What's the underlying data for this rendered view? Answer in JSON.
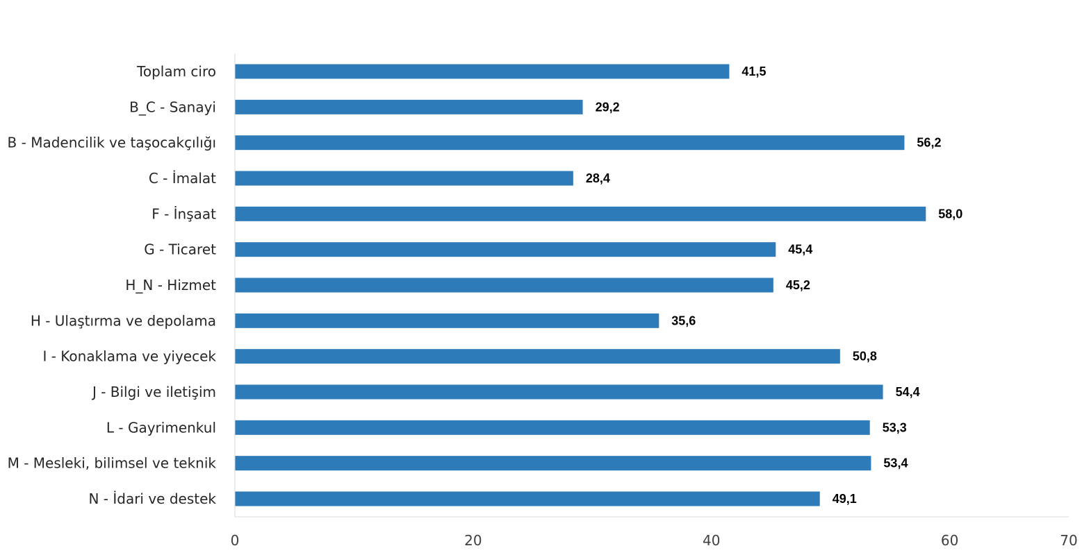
{
  "chart_data": {
    "type": "bar",
    "orientation": "horizontal",
    "categories": [
      "Toplam ciro",
      "B_C - Sanayi",
      "B - Madencilik ve taşocakçılığı",
      "C - İmalat",
      "F - İnşaat",
      "G - Ticaret",
      "H_N - Hizmet",
      "H - Ulaştırma ve depolama",
      "I - Konaklama ve yiyecek",
      "J - Bilgi ve iletişim",
      "L - Gayrimenkul",
      "M - Mesleki, bilimsel ve teknik",
      "N - İdari ve destek"
    ],
    "values": [
      41.5,
      29.2,
      56.2,
      28.4,
      58.0,
      45.4,
      45.2,
      35.6,
      50.8,
      54.4,
      53.3,
      53.4,
      49.1
    ],
    "value_labels": [
      "41,5",
      "29,2",
      "56,2",
      "28,4",
      "58,0",
      "45,4",
      "45,2",
      "35,6",
      "50,8",
      "54,4",
      "53,3",
      "53,4",
      "49,1"
    ],
    "xlim": [
      0,
      70
    ],
    "xticks": [
      0,
      20,
      40,
      60,
      70
    ],
    "xtick_labels": [
      "0",
      "20",
      "40",
      "60",
      "70"
    ],
    "title": "",
    "xlabel": "",
    "ylabel": "",
    "grid": false,
    "legend": "none",
    "bar_color": "#2E7BB9"
  }
}
